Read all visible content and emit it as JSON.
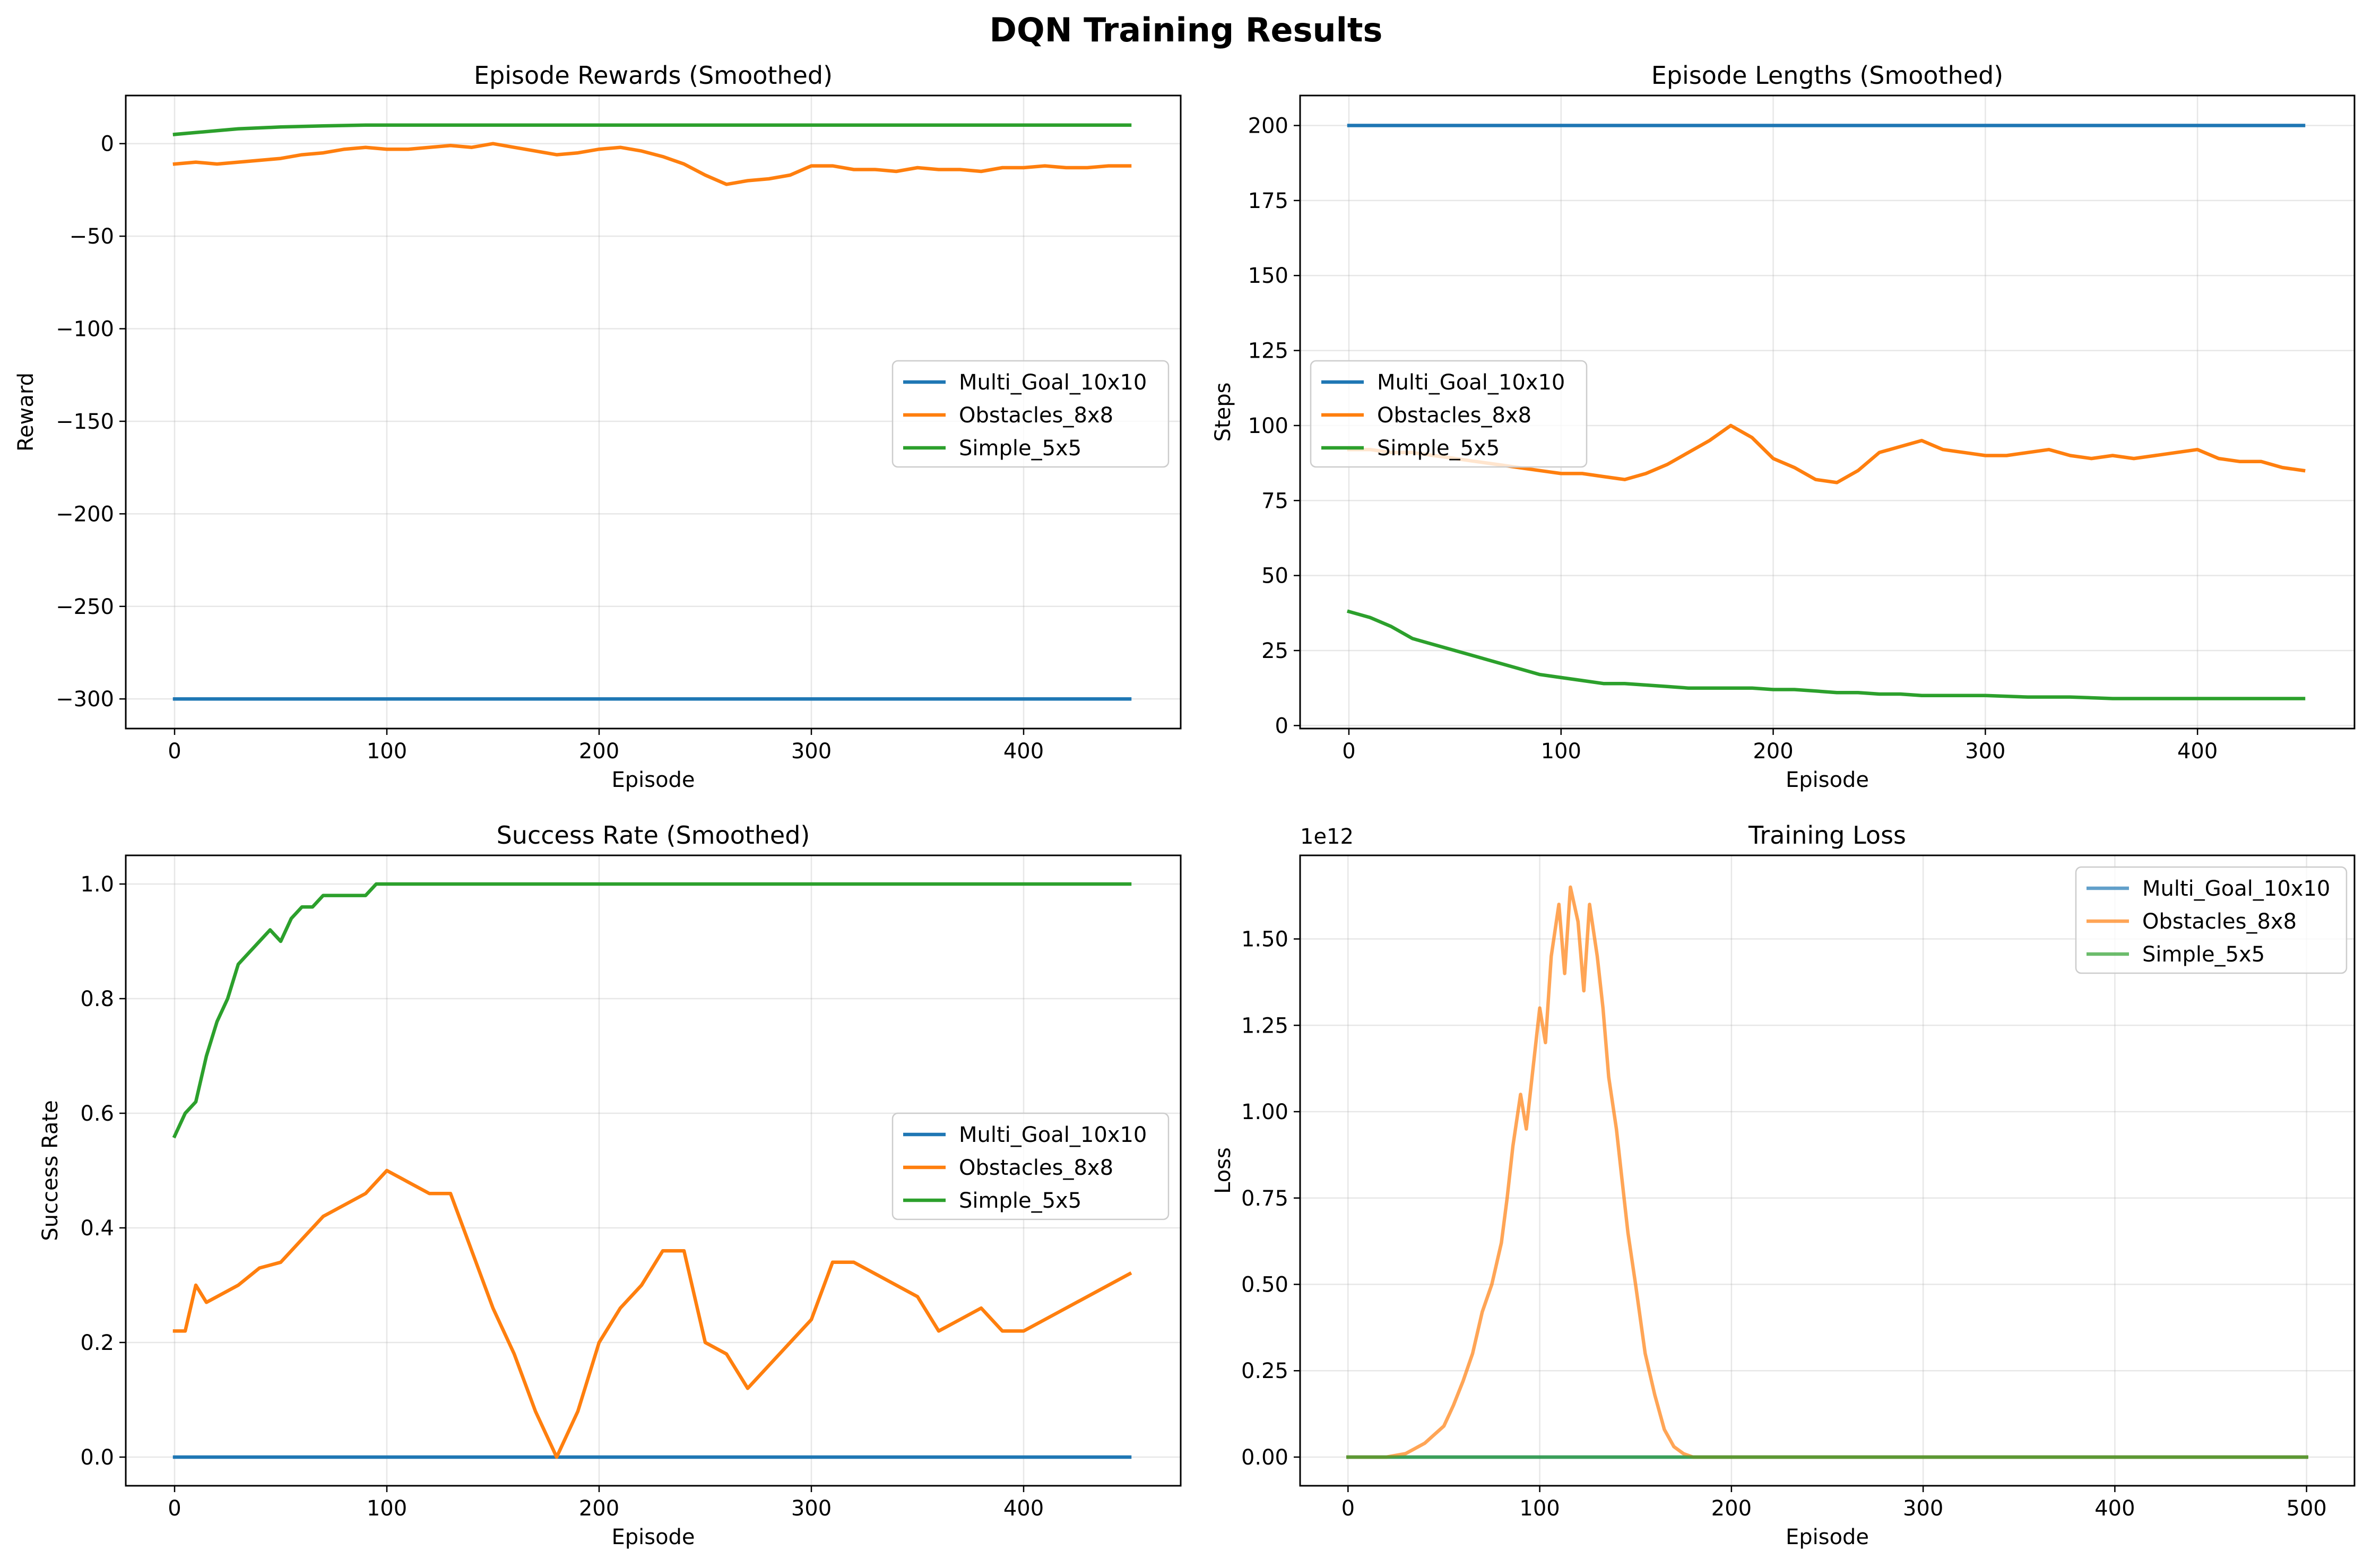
{
  "title": "DQN Training Results",
  "chart_data": [
    {
      "type": "line",
      "title": "Episode Rewards (Smoothed)",
      "xlabel": "Episode",
      "ylabel": "Reward",
      "xlim": [
        -23,
        474
      ],
      "ylim": [
        -316,
        26
      ],
      "xticks": [
        0,
        100,
        200,
        300,
        400
      ],
      "yticks": [
        0,
        -50,
        -100,
        -150,
        -200,
        -250,
        -300
      ],
      "ytick_labels": [
        "0",
        "−50",
        "−100",
        "−150",
        "−200",
        "−250",
        "−300"
      ],
      "grid": true,
      "legend": "center-right",
      "line_alpha": 1,
      "series": [
        {
          "name": "Multi_Goal_10x10",
          "color": "#1f77b4",
          "x": [
            0,
            450
          ],
          "y": [
            -300,
            -300
          ]
        },
        {
          "name": "Obstacles_8x8",
          "color": "#ff7f0e",
          "x": [
            0,
            10,
            20,
            30,
            40,
            50,
            60,
            70,
            80,
            90,
            100,
            110,
            120,
            130,
            140,
            150,
            160,
            170,
            180,
            190,
            200,
            210,
            220,
            230,
            240,
            250,
            260,
            270,
            280,
            290,
            300,
            310,
            320,
            330,
            340,
            350,
            360,
            370,
            380,
            390,
            400,
            410,
            420,
            430,
            440,
            450
          ],
          "y": [
            -11,
            -10,
            -11,
            -10,
            -9,
            -8,
            -6,
            -5,
            -3,
            -2,
            -3,
            -3,
            -2,
            -1,
            -2,
            0,
            -2,
            -4,
            -6,
            -5,
            -3,
            -2,
            -4,
            -7,
            -11,
            -17,
            -22,
            -20,
            -19,
            -17,
            -12,
            -12,
            -14,
            -14,
            -15,
            -13,
            -14,
            -14,
            -15,
            -13,
            -13,
            -12,
            -13,
            -13,
            -12,
            -12
          ]
        },
        {
          "name": "Simple_5x5",
          "color": "#2ca02c",
          "x": [
            0,
            10,
            20,
            30,
            40,
            50,
            60,
            70,
            80,
            90,
            100,
            450
          ],
          "y": [
            5,
            6,
            7,
            8,
            8.5,
            9,
            9.3,
            9.6,
            9.8,
            10,
            10,
            10
          ]
        }
      ]
    },
    {
      "type": "line",
      "title": "Episode Lengths (Smoothed)",
      "xlabel": "Episode",
      "ylabel": "Steps",
      "xlim": [
        -23,
        474
      ],
      "ylim": [
        -1,
        210
      ],
      "xticks": [
        0,
        100,
        200,
        300,
        400
      ],
      "yticks": [
        0,
        25,
        50,
        75,
        100,
        125,
        150,
        175,
        200
      ],
      "ytick_labels": [
        "0",
        "25",
        "50",
        "75",
        "100",
        "125",
        "150",
        "175",
        "200"
      ],
      "grid": true,
      "legend": "center-left",
      "line_alpha": 1,
      "series": [
        {
          "name": "Multi_Goal_10x10",
          "color": "#1f77b4",
          "x": [
            0,
            450
          ],
          "y": [
            200,
            200
          ]
        },
        {
          "name": "Obstacles_8x8",
          "color": "#ff7f0e",
          "x": [
            0,
            10,
            20,
            30,
            40,
            50,
            60,
            70,
            80,
            90,
            100,
            110,
            120,
            130,
            140,
            150,
            160,
            170,
            180,
            190,
            200,
            210,
            220,
            230,
            240,
            250,
            260,
            270,
            280,
            290,
            300,
            310,
            320,
            330,
            340,
            350,
            360,
            370,
            380,
            390,
            400,
            410,
            420,
            430,
            440,
            450
          ],
          "y": [
            92,
            92,
            91,
            91,
            90,
            89,
            88,
            87,
            86,
            85,
            84,
            84,
            83,
            82,
            84,
            87,
            91,
            95,
            100,
            96,
            89,
            86,
            82,
            81,
            85,
            91,
            93,
            95,
            92,
            91,
            90,
            90,
            91,
            92,
            90,
            89,
            90,
            89,
            90,
            91,
            92,
            89,
            88,
            88,
            86,
            85
          ]
        },
        {
          "name": "Simple_5x5",
          "color": "#2ca02c",
          "x": [
            0,
            10,
            20,
            30,
            40,
            50,
            60,
            70,
            80,
            90,
            100,
            110,
            120,
            130,
            140,
            150,
            160,
            170,
            180,
            190,
            200,
            210,
            220,
            230,
            240,
            250,
            260,
            270,
            280,
            290,
            300,
            320,
            340,
            360,
            380,
            400,
            420,
            450
          ],
          "y": [
            38,
            36,
            33,
            29,
            27,
            25,
            23,
            21,
            19,
            17,
            16,
            15,
            14,
            14,
            13.5,
            13,
            12.5,
            12.5,
            12.5,
            12.5,
            12,
            12,
            11.5,
            11,
            11,
            10.5,
            10.5,
            10,
            10,
            10,
            10,
            9.5,
            9.5,
            9,
            9,
            9,
            9,
            9
          ]
        }
      ]
    },
    {
      "type": "line",
      "title": "Success Rate (Smoothed)",
      "xlabel": "Episode",
      "ylabel": "Success Rate",
      "xlim": [
        -23,
        474
      ],
      "ylim": [
        -0.05,
        1.05
      ],
      "xticks": [
        0,
        100,
        200,
        300,
        400
      ],
      "yticks": [
        0,
        0.2,
        0.4,
        0.6,
        0.8,
        1.0
      ],
      "ytick_labels": [
        "0.0",
        "0.2",
        "0.4",
        "0.6",
        "0.8",
        "1.0"
      ],
      "grid": true,
      "legend": "center-right",
      "line_alpha": 1,
      "series": [
        {
          "name": "Multi_Goal_10x10",
          "color": "#1f77b4",
          "x": [
            0,
            450
          ],
          "y": [
            0,
            0
          ]
        },
        {
          "name": "Obstacles_8x8",
          "color": "#ff7f0e",
          "x": [
            0,
            5,
            10,
            15,
            20,
            30,
            40,
            50,
            60,
            70,
            80,
            90,
            100,
            110,
            120,
            130,
            140,
            150,
            160,
            170,
            180,
            190,
            200,
            210,
            220,
            230,
            240,
            250,
            260,
            270,
            280,
            290,
            300,
            310,
            320,
            330,
            340,
            350,
            360,
            370,
            380,
            390,
            400,
            410,
            420,
            430,
            440,
            450
          ],
          "y": [
            0.22,
            0.22,
            0.3,
            0.27,
            0.28,
            0.3,
            0.33,
            0.34,
            0.38,
            0.42,
            0.44,
            0.46,
            0.5,
            0.48,
            0.46,
            0.46,
            0.36,
            0.26,
            0.18,
            0.08,
            0.0,
            0.08,
            0.2,
            0.26,
            0.3,
            0.36,
            0.36,
            0.2,
            0.18,
            0.12,
            0.16,
            0.2,
            0.24,
            0.34,
            0.34,
            0.32,
            0.3,
            0.28,
            0.22,
            0.24,
            0.26,
            0.22,
            0.22,
            0.24,
            0.26,
            0.28,
            0.3,
            0.32
          ]
        },
        {
          "name": "Simple_5x5",
          "color": "#2ca02c",
          "x": [
            0,
            5,
            10,
            15,
            20,
            25,
            30,
            35,
            40,
            45,
            50,
            55,
            60,
            65,
            70,
            80,
            90,
            95,
            450
          ],
          "y": [
            0.56,
            0.6,
            0.62,
            0.7,
            0.76,
            0.8,
            0.86,
            0.88,
            0.9,
            0.92,
            0.9,
            0.94,
            0.96,
            0.96,
            0.98,
            0.98,
            0.98,
            1.0,
            1.0
          ]
        }
      ]
    },
    {
      "type": "line",
      "title": "Training Loss",
      "xlabel": "Episode",
      "ylabel": "Loss",
      "offset_text": "1e12",
      "xlim": [
        -25,
        525
      ],
      "ylim": [
        -0.083,
        1.742
      ],
      "xticks": [
        0,
        100,
        200,
        300,
        400,
        500
      ],
      "yticks": [
        0,
        0.25,
        0.5,
        0.75,
        1.0,
        1.25,
        1.5
      ],
      "ytick_labels": [
        "0.00",
        "0.25",
        "0.50",
        "0.75",
        "1.00",
        "1.25",
        "1.50"
      ],
      "grid": true,
      "legend": "upper-right",
      "line_alpha": 0.7,
      "series": [
        {
          "name": "Multi_Goal_10x10",
          "color": "#1f77b4",
          "x": [
            0,
            500
          ],
          "y": [
            0,
            0
          ]
        },
        {
          "name": "Obstacles_8x8",
          "color": "#ff7f0e",
          "x": [
            0,
            20,
            30,
            40,
            50,
            55,
            60,
            65,
            70,
            75,
            80,
            83,
            86,
            90,
            93,
            96,
            100,
            103,
            106,
            110,
            113,
            116,
            120,
            123,
            126,
            130,
            133,
            136,
            140,
            143,
            146,
            150,
            155,
            160,
            165,
            170,
            175,
            180,
            200,
            500
          ],
          "y": [
            0,
            0,
            0.01,
            0.04,
            0.09,
            0.15,
            0.22,
            0.3,
            0.42,
            0.5,
            0.62,
            0.75,
            0.9,
            1.05,
            0.95,
            1.1,
            1.3,
            1.2,
            1.45,
            1.6,
            1.4,
            1.65,
            1.55,
            1.35,
            1.6,
            1.45,
            1.3,
            1.1,
            0.95,
            0.8,
            0.65,
            0.5,
            0.3,
            0.18,
            0.08,
            0.03,
            0.01,
            0,
            0,
            0
          ]
        },
        {
          "name": "Simple_5x5",
          "color": "#2ca02c",
          "x": [
            0,
            500
          ],
          "y": [
            0,
            0
          ]
        }
      ]
    }
  ]
}
